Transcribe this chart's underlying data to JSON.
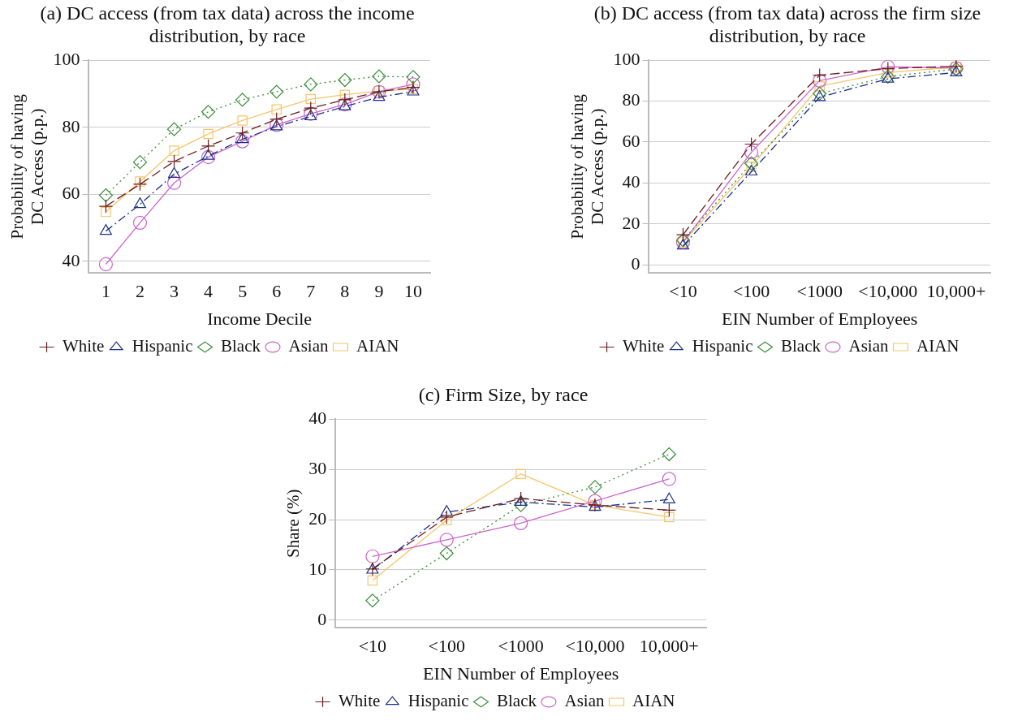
{
  "chart_data": [
    {
      "type": "line",
      "title": "(a) DC access (from tax data) across the income distribution, by race",
      "xlabel": "Income Decile",
      "ylabel": "Probability of having DC Access (p.p.)",
      "categories": [
        "1",
        "2",
        "3",
        "4",
        "5",
        "6",
        "7",
        "8",
        "9",
        "10"
      ],
      "series": [
        {
          "name": "White",
          "color": "#6b1d1d",
          "marker": "cross",
          "line_style": "dashed",
          "values": [
            56.4,
            63,
            69.8,
            74.4,
            78.3,
            82.4,
            85.7,
            88.2,
            90.6,
            91.9
          ]
        },
        {
          "name": "Hispanic",
          "color": "#1a2f8a",
          "marker": "triangle",
          "line_style": "dashdot",
          "values": [
            49,
            57,
            66,
            71.4,
            76.4,
            80.2,
            83.2,
            86.2,
            89,
            90.6
          ]
        },
        {
          "name": "Black",
          "color": "#3a8f3a",
          "marker": "diamond",
          "line_style": "dotted",
          "values": [
            59.7,
            69.6,
            79.4,
            84.6,
            88.2,
            90.6,
            92.8,
            94.1,
            95.2,
            95
          ]
        },
        {
          "name": "Asian",
          "color": "#cc66cc",
          "marker": "circle",
          "line_style": "solid",
          "values": [
            39.1,
            51.5,
            63.4,
            71.1,
            75.8,
            80.7,
            84,
            86.8,
            90.6,
            92.8
          ]
        },
        {
          "name": "AIAN",
          "color": "#f5c56b",
          "marker": "square",
          "line_style": "solid",
          "values": [
            54.7,
            63.8,
            73,
            78,
            82,
            85.3,
            88.4,
            89.7,
            90.8,
            91.4
          ]
        }
      ],
      "ylim": [
        36.5,
        100
      ],
      "yticks": [
        40,
        60,
        80,
        100
      ],
      "grid": "y",
      "legend": "bottom"
    },
    {
      "type": "line",
      "title": "(b) DC access (from tax data) across the firm size distribution, by race",
      "xlabel": "EIN Number of Employees",
      "ylabel": "Probability of having DC Access (p.p.)",
      "categories": [
        "<10",
        "<100",
        "<1000",
        "<10,000",
        "10,000+"
      ],
      "series": [
        {
          "name": "White",
          "color": "#6b1d1d",
          "marker": "cross",
          "line_style": "dashed",
          "values": [
            14.7,
            59,
            92.7,
            95.9,
            97.1
          ]
        },
        {
          "name": "Hispanic",
          "color": "#1a2f8a",
          "marker": "triangle",
          "line_style": "dashdot",
          "values": [
            9.3,
            45.5,
            81.9,
            90.9,
            94
          ]
        },
        {
          "name": "Black",
          "color": "#3a8f3a",
          "marker": "diamond",
          "line_style": "dotted",
          "values": [
            12,
            49.6,
            83.7,
            92,
            95.7
          ]
        },
        {
          "name": "Asian",
          "color": "#cc66cc",
          "marker": "circle",
          "line_style": "solid",
          "values": [
            11,
            55,
            90,
            96.8,
            96.2
          ]
        },
        {
          "name": "AIAN",
          "color": "#f5c56b",
          "marker": "square",
          "line_style": "solid",
          "values": [
            11,
            48,
            87.3,
            94,
            96.7
          ]
        }
      ],
      "ylim": [
        -4,
        100
      ],
      "yticks": [
        0,
        20,
        40,
        60,
        80,
        100
      ],
      "grid": "y",
      "legend": "bottom"
    },
    {
      "type": "line",
      "title": "(c) Firm Size, by race",
      "xlabel": "EIN Number of Employees",
      "ylabel": "Share (%)",
      "categories": [
        "<10",
        "<100",
        "<1000",
        "<10,000",
        "10,000+"
      ],
      "series": [
        {
          "name": "White",
          "color": "#6b1d1d",
          "marker": "cross",
          "line_style": "dashed",
          "values": [
            10.2,
            20.5,
            24.2,
            22.9,
            21.9
          ]
        },
        {
          "name": "Hispanic",
          "color": "#1a2f8a",
          "marker": "triangle",
          "line_style": "dashdot",
          "values": [
            10,
            21.5,
            23.5,
            22.5,
            24
          ]
        },
        {
          "name": "Black",
          "color": "#3a8f3a",
          "marker": "diamond",
          "line_style": "dotted",
          "values": [
            3.9,
            13.3,
            22.9,
            26.5,
            33
          ]
        },
        {
          "name": "Asian",
          "color": "#cc66cc",
          "marker": "circle",
          "line_style": "solid",
          "values": [
            12.7,
            16,
            19.3,
            23.7,
            28.1
          ]
        },
        {
          "name": "AIAN",
          "color": "#f5c56b",
          "marker": "square",
          "line_style": "solid",
          "values": [
            7.9,
            19.9,
            29.1,
            22.9,
            20.5
          ]
        }
      ],
      "ylim": [
        -1.5,
        40
      ],
      "yticks": [
        0,
        10,
        20,
        30,
        40
      ],
      "grid": "y",
      "legend": "bottom"
    }
  ]
}
